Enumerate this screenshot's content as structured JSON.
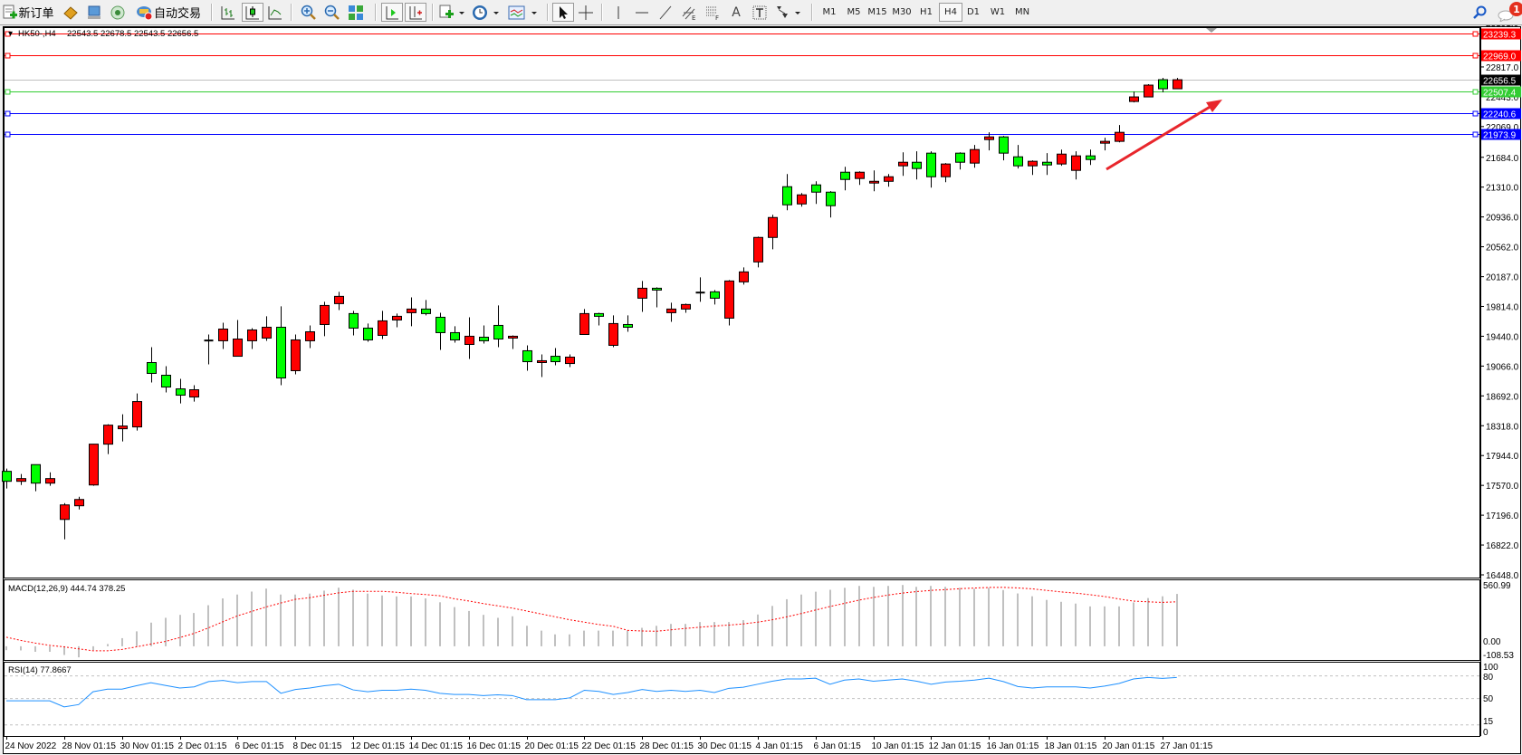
{
  "toolbar": {
    "new_order_label": "新订单",
    "auto_trade_label": "自动交易",
    "timeframes": [
      "M1",
      "M5",
      "M15",
      "M30",
      "H1",
      "H4",
      "D1",
      "W1",
      "MN"
    ],
    "active_timeframe": "H4",
    "notification_count": "1",
    "icons": [
      "new-order-icon",
      "expert-icon",
      "market-watch-icon",
      "signals-icon",
      "auto-trading-icon",
      "bar-chart-icon",
      "candlestick-icon",
      "line-chart-icon",
      "zoom-in-icon",
      "zoom-out-icon",
      "tile-windows-icon",
      "chart-shift-icon",
      "autoscroll-icon",
      "indicators-icon",
      "periods-clock-icon",
      "templates-icon",
      "cursor-icon",
      "crosshair-icon",
      "vertical-line-icon",
      "horizontal-line-icon",
      "trendline-icon",
      "equidistant-channel-icon",
      "fibonacci-icon",
      "text-icon",
      "text-label-icon",
      "arrows-icon",
      "search-icon",
      "notifications-icon"
    ]
  },
  "chart": {
    "header": "HK50-,H4",
    "ohlc": "22543.5 22678.5 22543.5 22656.5"
  },
  "chart_data": {
    "type": "candlestick",
    "symbol": "HK50-",
    "timeframe": "H4",
    "colors": {
      "up": "#ff0000",
      "down": "#00ff00",
      "wick": "#000000",
      "background": "#ffffff"
    },
    "ylim": [
      16448.0,
      23239.3
    ],
    "y_ticks": [
      "23191.0",
      "22817.0",
      "22443.0",
      "22069.0",
      "21684.0",
      "21310.0",
      "20936.0",
      "20562.0",
      "20187.0",
      "19814.0",
      "19440.0",
      "19066.0",
      "18692.0",
      "18318.0",
      "17944.0",
      "17570.0",
      "17196.0",
      "16822.0",
      "16448.0"
    ],
    "x_tick_labels": [
      "24 Nov 2022",
      "28 Nov 01:15",
      "30 Nov 01:15",
      "2 Dec 01:15",
      "6 Dec 01:15",
      "8 Dec 01:15",
      "12 Dec 01:15",
      "14 Dec 01:15",
      "16 Dec 01:15",
      "20 Dec 01:15",
      "22 Dec 01:15",
      "28 Dec 01:15",
      "30 Dec 01:15",
      "4 Jan 01:15",
      "6 Jan 01:15",
      "10 Jan 01:15",
      "12 Jan 01:15",
      "16 Jan 01:15",
      "18 Jan 01:15",
      "20 Jan 01:15",
      "27 Jan 01:15"
    ],
    "ohlc": [
      [
        17746,
        17780,
        17530,
        17621
      ],
      [
        17621,
        17712,
        17575,
        17655
      ],
      [
        17830,
        17830,
        17496,
        17598
      ],
      [
        17598,
        17734,
        17564,
        17655
      ],
      [
        17143,
        17348,
        16893,
        17325
      ],
      [
        17314,
        17427,
        17268,
        17393
      ],
      [
        17575,
        18090,
        17564,
        18087
      ],
      [
        18087,
        18337,
        17962,
        18325
      ],
      [
        18280,
        18462,
        18121,
        18314
      ],
      [
        18303,
        18723,
        18257,
        18621
      ],
      [
        19110,
        19303,
        18860,
        18974
      ],
      [
        18951,
        19064,
        18735,
        18803
      ],
      [
        18780,
        18905,
        18598,
        18701
      ],
      [
        18678,
        18826,
        18621,
        18769
      ],
      [
        19383,
        19462,
        19087,
        19390
      ],
      [
        19383,
        19610,
        19280,
        19530
      ],
      [
        19189,
        19644,
        19189,
        19405
      ],
      [
        19383,
        19542,
        19280,
        19519
      ],
      [
        19417,
        19690,
        19383,
        19553
      ],
      [
        19553,
        19815,
        18826,
        18917
      ],
      [
        19008,
        19462,
        18962,
        19394
      ],
      [
        19383,
        19576,
        19292,
        19496
      ],
      [
        19587,
        19872,
        19440,
        19826
      ],
      [
        19849,
        19997,
        19769,
        19940
      ],
      [
        19724,
        19758,
        19451,
        19542
      ],
      [
        19542,
        19599,
        19371,
        19394
      ],
      [
        19451,
        19758,
        19405,
        19633
      ],
      [
        19644,
        19724,
        19553,
        19690
      ],
      [
        19735,
        19928,
        19565,
        19781
      ],
      [
        19781,
        19894,
        19701,
        19724
      ],
      [
        19678,
        19735,
        19269,
        19485
      ],
      [
        19485,
        19565,
        19360,
        19394
      ],
      [
        19337,
        19678,
        19155,
        19440
      ],
      [
        19428,
        19576,
        19349,
        19383
      ],
      [
        19576,
        19826,
        19303,
        19405
      ],
      [
        19417,
        19451,
        19280,
        19440
      ],
      [
        19258,
        19326,
        19008,
        19121
      ],
      [
        19110,
        19212,
        18928,
        19133
      ],
      [
        19189,
        19292,
        19076,
        19121
      ],
      [
        19098,
        19212,
        19053,
        19178
      ],
      [
        19462,
        19781,
        19462,
        19724
      ],
      [
        19724,
        19735,
        19576,
        19690
      ],
      [
        19326,
        19701,
        19303,
        19599
      ],
      [
        19587,
        19701,
        19496,
        19553
      ],
      [
        19917,
        20133,
        19746,
        20042
      ],
      [
        20042,
        20054,
        19803,
        20019
      ],
      [
        19735,
        19860,
        19621,
        19781
      ],
      [
        19781,
        19849,
        19735,
        19838
      ],
      [
        19985,
        20179,
        19872,
        19990
      ],
      [
        19997,
        20019,
        19838,
        19917
      ],
      [
        19667,
        20145,
        19576,
        20133
      ],
      [
        20122,
        20304,
        20088,
        20247
      ],
      [
        20372,
        20690,
        20304,
        20679
      ],
      [
        20679,
        20963,
        20531,
        20929
      ],
      [
        21315,
        21474,
        21020,
        21088
      ],
      [
        21099,
        21236,
        21065,
        21213
      ],
      [
        21338,
        21383,
        21099,
        21247
      ],
      [
        21247,
        21260,
        20929,
        21077
      ],
      [
        21497,
        21565,
        21270,
        21406
      ],
      [
        21418,
        21508,
        21338,
        21497
      ],
      [
        21361,
        21520,
        21259,
        21383
      ],
      [
        21383,
        21474,
        21315,
        21440
      ],
      [
        21577,
        21747,
        21452,
        21622
      ],
      [
        21622,
        21759,
        21406,
        21543
      ],
      [
        21736,
        21759,
        21304,
        21440
      ],
      [
        21440,
        21611,
        21372,
        21600
      ],
      [
        21736,
        21747,
        21531,
        21622
      ],
      [
        21611,
        21838,
        21554,
        21781
      ],
      [
        21906,
        21997,
        21770,
        21940
      ],
      [
        21940,
        21952,
        21645,
        21736
      ],
      [
        21690,
        21838,
        21543,
        21577
      ],
      [
        21577,
        21645,
        21463,
        21634
      ],
      [
        21622,
        21736,
        21463,
        21588
      ],
      [
        21600,
        21781,
        21577,
        21724
      ],
      [
        21520,
        21759,
        21406,
        21702
      ],
      [
        21702,
        21781,
        21588,
        21656
      ],
      [
        21861,
        21929,
        21770,
        21884
      ],
      [
        21884,
        22088,
        21872,
        21997
      ],
      [
        22384,
        22509,
        22372,
        22441
      ],
      [
        22441,
        22600,
        22441,
        22589
      ],
      [
        22657,
        22680,
        22498,
        22543.5
      ],
      [
        22543.5,
        22678.5,
        22543.5,
        22656.5
      ]
    ],
    "horizontal_lines": [
      {
        "price": "23239.3",
        "color": "#ff0000",
        "label_text": "#ffffff"
      },
      {
        "price": "22969.0",
        "color": "#ff0000",
        "label_text": "#ffffff"
      },
      {
        "price": "22656.5",
        "color": "#c0c0c0",
        "label_bg": "#000000",
        "label_text": "#ffffff",
        "bid": true
      },
      {
        "price": "22507.4",
        "color": "#32cd32",
        "label_text": "#ffffff"
      },
      {
        "price": "22240.6",
        "color": "#0000ff",
        "label_text": "#ffffff"
      },
      {
        "price": "21973.9",
        "color": "#0000ff",
        "label_text": "#ffffff"
      }
    ],
    "annotation_arrow_color": "#e8262c",
    "macd": {
      "label": "MACD(12,26,9) 444.74 378.25",
      "ylim": [
        -108.53,
        560.99
      ],
      "axis_labels": [
        "560.99",
        "0.00",
        "-108.53"
      ],
      "histogram_color": "#c0c0c0",
      "signal_color": "#ff0000",
      "histogram": [
        -33,
        -35,
        -47,
        -47,
        -74,
        -94,
        -33,
        19,
        69,
        127,
        201,
        242,
        267,
        283,
        349,
        407,
        440,
        465,
        490,
        440,
        440,
        448,
        473,
        498,
        481,
        448,
        432,
        424,
        424,
        407,
        374,
        333,
        300,
        267,
        242,
        255,
        174,
        133,
        101,
        101,
        133,
        133,
        133,
        133,
        157,
        174,
        190,
        190,
        206,
        206,
        206,
        222,
        270,
        343,
        400,
        440,
        464,
        480,
        497,
        513,
        505,
        513,
        521,
        505,
        513,
        505,
        497,
        489,
        497,
        478,
        449,
        425,
        394,
        378,
        363,
        339,
        339,
        339,
        373,
        410,
        425,
        444.74
      ],
      "signal": [
        77,
        50,
        27,
        8,
        -5,
        -22,
        -38,
        -38,
        -27,
        -5,
        19,
        41,
        74,
        110,
        157,
        209,
        259,
        297,
        335,
        368,
        399,
        413,
        434,
        454,
        467,
        467,
        467,
        459,
        448,
        440,
        429,
        404,
        385,
        363,
        344,
        325,
        300,
        275,
        250,
        225,
        205,
        185,
        170,
        135,
        130,
        128,
        140,
        152,
        162,
        172,
        180,
        190,
        205,
        225,
        250,
        278,
        308,
        338,
        365,
        392,
        415,
        435,
        452,
        465,
        475,
        482,
        490,
        495,
        500,
        501,
        496,
        488,
        475,
        462,
        452,
        438,
        423,
        402,
        384,
        378,
        373,
        378.25
      ]
    },
    "rsi": {
      "label": "RSI(14) 77.8667",
      "ylim": [
        0,
        100
      ],
      "levels": [
        80,
        50,
        15
      ],
      "axis_labels": [
        "100",
        "80",
        "50",
        "15",
        "0"
      ],
      "color": "#1e90ff",
      "values": [
        47,
        47,
        47,
        47,
        39,
        42,
        59,
        62.5,
        62.5,
        67,
        71,
        67.5,
        64,
        65.5,
        72.5,
        74,
        71,
        72.5,
        72.5,
        57,
        62,
        64,
        67,
        69,
        61.5,
        59,
        61,
        61,
        62.5,
        61,
        57,
        55.5,
        55.5,
        54,
        55,
        54,
        48.6,
        48.6,
        48.6,
        51,
        61,
        59.5,
        55.5,
        58,
        62,
        59.5,
        61,
        59.5,
        61,
        58,
        63.6,
        65,
        69,
        73,
        76,
        76,
        77,
        69,
        74.5,
        76,
        73,
        74.5,
        76,
        73,
        69,
        72,
        73,
        74.5,
        77,
        72.5,
        66,
        64,
        65.5,
        65.5,
        65.5,
        64,
        66.5,
        70,
        76,
        78,
        76.7,
        77.87
      ]
    }
  }
}
